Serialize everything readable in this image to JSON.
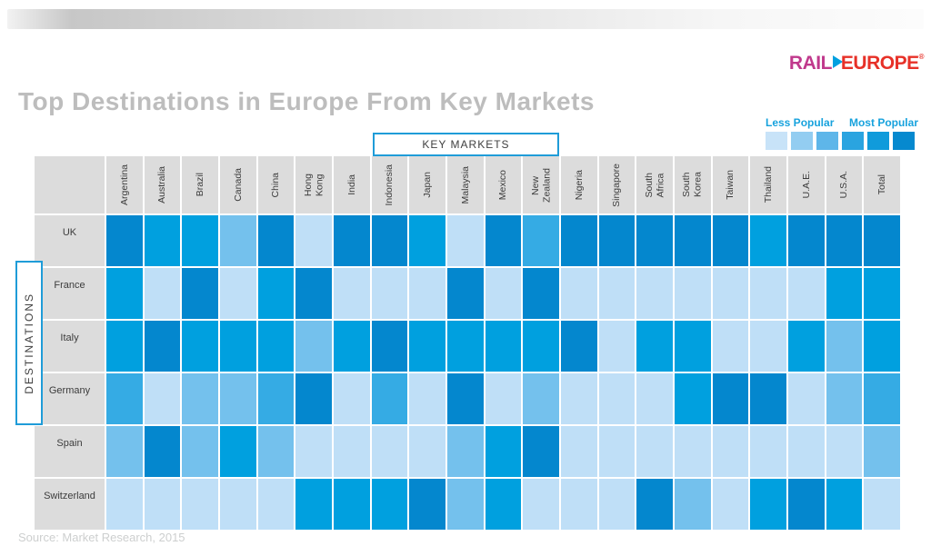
{
  "header": {
    "title": "Top Destinations in Europe From Key Markets",
    "logo": {
      "rail": "RAIL",
      "europe": "EUROPE",
      "registered": "®"
    }
  },
  "legend": {
    "less_label": "Less Popular",
    "most_label": "Most Popular",
    "swatches": [
      "#c8e3f8",
      "#93cdf1",
      "#5eb6e9",
      "#2aa4e0",
      "#109bdb",
      "#0689cf"
    ]
  },
  "axis_labels": {
    "key_markets": "KEY MARKETS",
    "destinations": "DESTINATIONS"
  },
  "source": "Source: Market Research, 2015",
  "colors": {
    "accent_blue": "#1f9cd8",
    "header_gray": "#dcdcdc",
    "title_gray": "#bdbdbd",
    "logo_rail": "#c0398c",
    "logo_europe": "#e73128"
  },
  "chart_data": {
    "type": "heatmap",
    "title": "Top Destinations in Europe From Key Markets",
    "xlabel": "KEY MARKETS",
    "ylabel": "DESTINATIONS",
    "legend": {
      "low": "Less Popular",
      "high": "Most Popular"
    },
    "categories": [
      "Argentina",
      "Australia",
      "Brazil",
      "Canada",
      "China",
      "Hong\nKong",
      "India",
      "Indonesia",
      "Japan",
      "Malaysia",
      "Mexico",
      "New\nZealand",
      "Nigeria",
      "Singapore",
      "South\nAfrica",
      "South\nKorea",
      "Taiwan",
      "Thailand",
      "U.A.E.",
      "U.S.A.",
      "Total"
    ],
    "rows": [
      "UK",
      "France",
      "Italy",
      "Germany",
      "Spain",
      "Switzerland"
    ],
    "scale_note": "popularity level 1 (least popular) to 5 (most popular), read from cell shading",
    "palette": {
      "1": "#bfdff7",
      "2": "#74c1ed",
      "3": "#35abe4",
      "4": "#00a0df",
      "5": "#0487ce"
    },
    "values": [
      [
        5,
        4,
        4,
        2,
        5,
        1,
        5,
        5,
        4,
        1,
        5,
        3,
        5,
        5,
        5,
        5,
        5,
        4,
        5,
        5,
        5
      ],
      [
        4,
        1,
        5,
        1,
        4,
        5,
        1,
        1,
        1,
        5,
        1,
        5,
        1,
        1,
        1,
        1,
        1,
        1,
        1,
        4,
        4
      ],
      [
        4,
        5,
        4,
        4,
        4,
        2,
        4,
        5,
        4,
        4,
        4,
        4,
        5,
        1,
        4,
        4,
        1,
        1,
        4,
        2,
        4
      ],
      [
        3,
        1,
        2,
        2,
        3,
        5,
        1,
        3,
        1,
        5,
        1,
        2,
        1,
        1,
        1,
        4,
        5,
        5,
        1,
        2,
        3
      ],
      [
        2,
        5,
        2,
        4,
        2,
        1,
        1,
        1,
        1,
        2,
        4,
        5,
        1,
        1,
        1,
        1,
        1,
        1,
        1,
        1,
        2
      ],
      [
        1,
        1,
        1,
        1,
        1,
        4,
        4,
        4,
        5,
        2,
        4,
        1,
        1,
        1,
        5,
        2,
        1,
        4,
        5,
        4,
        1
      ]
    ]
  }
}
